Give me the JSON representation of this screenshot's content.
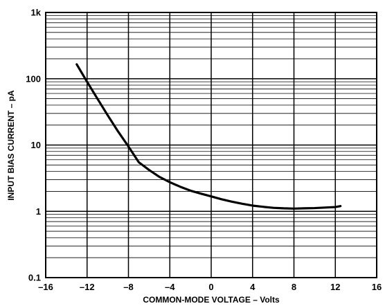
{
  "chart_data": {
    "type": "line",
    "title": "",
    "xlabel": "COMMON-MODE VOLTAGE – Volts",
    "ylabel": "INPUT BIAS CURRENT – pA",
    "xlim": [
      -16,
      16
    ],
    "ylim": [
      0.1,
      1000
    ],
    "y_scale": "log",
    "grid": true,
    "x_ticks": [
      -16,
      -12,
      -8,
      -4,
      0,
      4,
      8,
      12,
      16
    ],
    "x_tick_labels": [
      "–16",
      "–12",
      "–8",
      "–4",
      "0",
      "4",
      "8",
      "12",
      "16"
    ],
    "y_ticks": [
      0.1,
      1,
      10,
      100,
      1000
    ],
    "y_tick_labels": [
      "0.1",
      "1",
      "10",
      "100",
      "1k"
    ],
    "series": [
      {
        "x": [
          -13,
          -12,
          -11,
          -10,
          -9,
          -8,
          -7,
          -6,
          -5,
          -4,
          -3,
          -2,
          -1,
          0,
          1,
          2,
          3,
          4,
          5,
          6,
          7,
          8,
          9,
          10,
          11,
          12,
          12.5
        ],
        "values": [
          165,
          90,
          50,
          28,
          16,
          9.5,
          5.5,
          4.2,
          3.3,
          2.75,
          2.35,
          2.05,
          1.85,
          1.68,
          1.52,
          1.4,
          1.3,
          1.22,
          1.17,
          1.13,
          1.11,
          1.1,
          1.11,
          1.12,
          1.14,
          1.16,
          1.2
        ]
      }
    ]
  }
}
